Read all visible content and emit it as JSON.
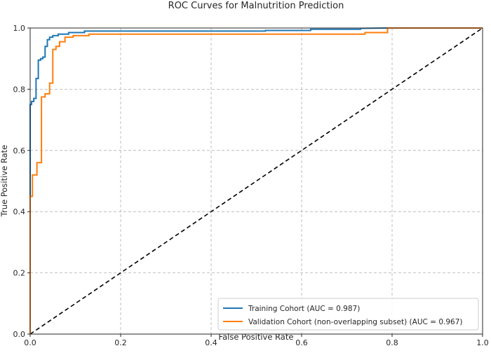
{
  "chart_data": {
    "type": "line",
    "title": "ROC Curves for Malnutrition Prediction",
    "xlabel": "False Positive Rate",
    "ylabel": "True Positive Rate",
    "xlim": [
      0.0,
      1.0
    ],
    "ylim": [
      0.0,
      1.0
    ],
    "xticks": [
      "0.0",
      "0.2",
      "0.4",
      "0.6",
      "0.8",
      "1.0"
    ],
    "yticks": [
      "0.0",
      "0.2",
      "0.4",
      "0.6",
      "0.8",
      "1.0"
    ],
    "grid": true,
    "legend_position": "lower-right",
    "series": [
      {
        "name": "Training Cohort (AUC = 0.987)",
        "color": "#1f77b4",
        "x": [
          0.0,
          0.0,
          0.003,
          0.003,
          0.008,
          0.008,
          0.013,
          0.013,
          0.018,
          0.018,
          0.023,
          0.023,
          0.028,
          0.028,
          0.033,
          0.033,
          0.038,
          0.038,
          0.043,
          0.043,
          0.05,
          0.05,
          0.062,
          0.062,
          0.085,
          0.085,
          0.12,
          0.12,
          0.3,
          0.52,
          0.52,
          0.62,
          0.62,
          0.73,
          0.73,
          0.79,
          1.0
        ],
        "y": [
          0.0,
          0.75,
          0.75,
          0.76,
          0.76,
          0.77,
          0.77,
          0.835,
          0.835,
          0.895,
          0.895,
          0.9,
          0.9,
          0.905,
          0.905,
          0.94,
          0.94,
          0.962,
          0.962,
          0.97,
          0.97,
          0.975,
          0.975,
          0.98,
          0.98,
          0.985,
          0.985,
          0.99,
          0.99,
          0.99,
          0.992,
          0.992,
          0.996,
          0.996,
          0.999,
          1.0,
          1.0
        ]
      },
      {
        "name": "Validation Cohort (non-overlapping subset) (AUC = 0.967)",
        "color": "#ff7f0e",
        "x": [
          0.0,
          0.0,
          0.005,
          0.005,
          0.015,
          0.015,
          0.025,
          0.025,
          0.033,
          0.033,
          0.043,
          0.043,
          0.05,
          0.05,
          0.057,
          0.057,
          0.065,
          0.065,
          0.077,
          0.077,
          0.095,
          0.095,
          0.13,
          0.13,
          0.74,
          0.74,
          0.79,
          0.79,
          1.0
        ],
        "y": [
          0.0,
          0.45,
          0.45,
          0.52,
          0.52,
          0.56,
          0.56,
          0.775,
          0.775,
          0.785,
          0.785,
          0.82,
          0.82,
          0.93,
          0.93,
          0.94,
          0.94,
          0.955,
          0.955,
          0.97,
          0.97,
          0.975,
          0.975,
          0.98,
          0.98,
          0.985,
          0.985,
          1.0,
          1.0
        ]
      },
      {
        "name": "",
        "color": "#000000",
        "dashed": true,
        "x": [
          0.0,
          1.0
        ],
        "y": [
          0.0,
          1.0
        ]
      }
    ]
  }
}
